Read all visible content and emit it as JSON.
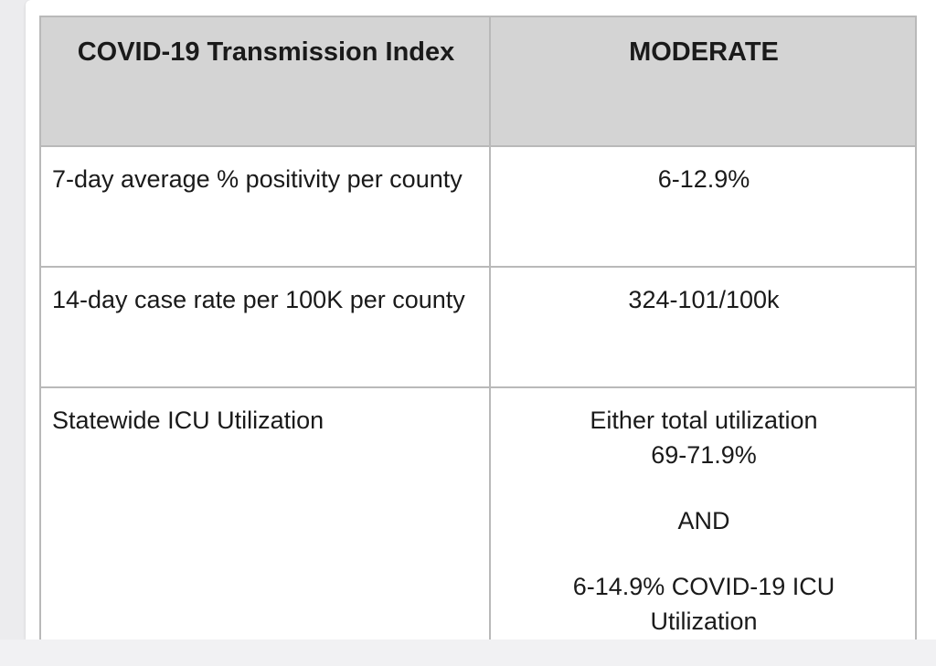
{
  "table": {
    "header": {
      "left": "COVID-19 Transmission Index",
      "right": "MODERATE"
    },
    "rows": [
      {
        "label": "7-day average % positivity per county",
        "value": "6-12.9%"
      },
      {
        "label": "14-day case rate per 100K per county",
        "value": "324-101/100k"
      },
      {
        "label": "Statewide ICU Utilization",
        "value_lines": [
          "Either total utilization",
          "69-71.9%"
        ],
        "connector": "AND",
        "value_lines_2": [
          "6-14.9% COVID-19 ICU",
          "Utilization"
        ]
      }
    ]
  },
  "colors": {
    "header_bg": "#d4d4d4",
    "border": "#b9b9b9",
    "page_bg": "#ececee"
  }
}
